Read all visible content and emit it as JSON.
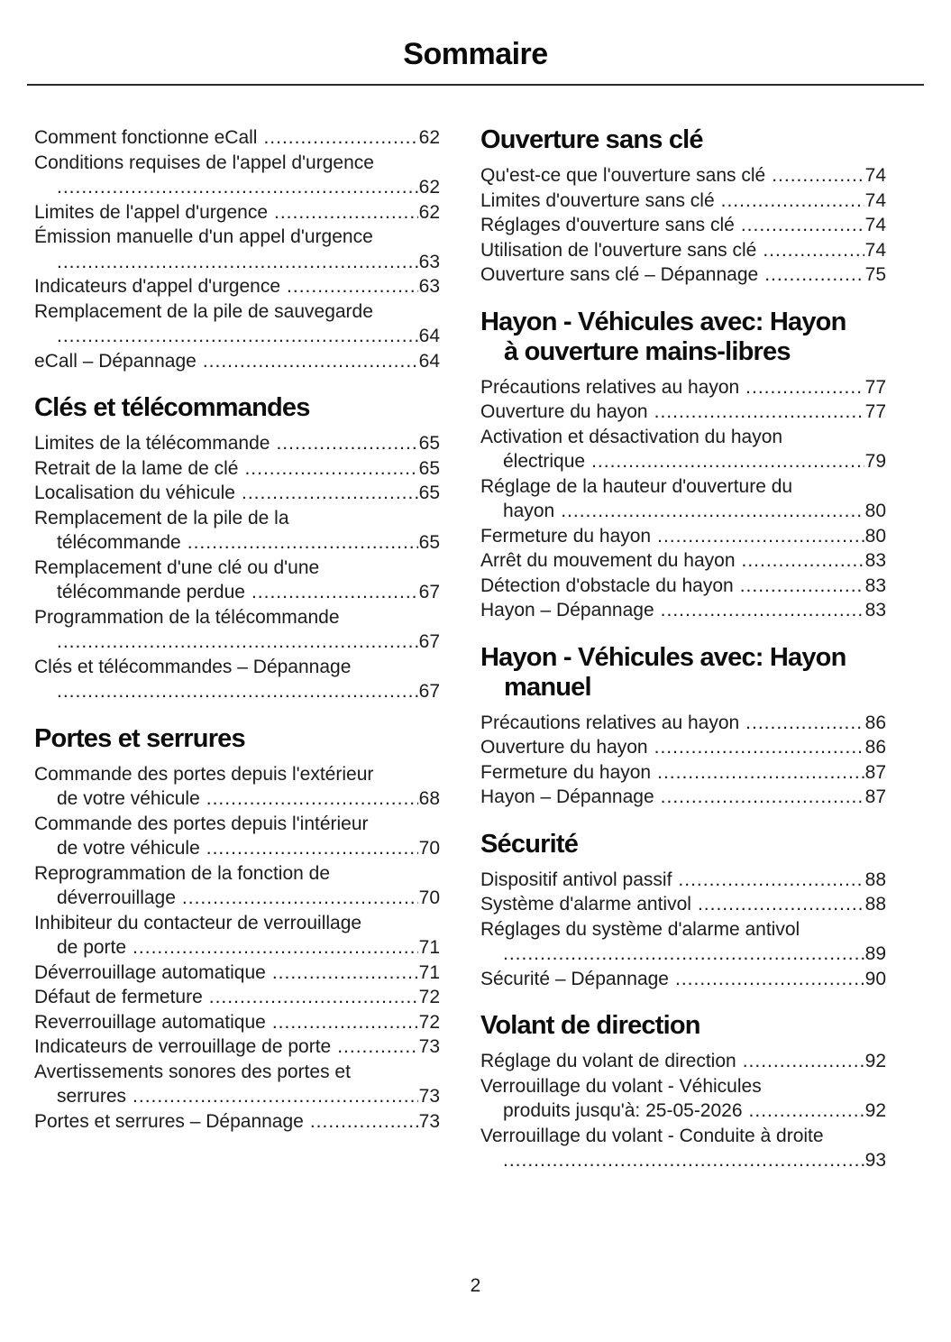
{
  "page": {
    "title": "Sommaire",
    "footer_page_number": "2"
  },
  "toc": {
    "columns": [
      {
        "side": "left",
        "sections": [
          {
            "heading_lines": [],
            "entries": [
              {
                "lines": [
                  "Comment fonctionne eCall"
                ],
                "page": "62"
              },
              {
                "lines": [
                  "Conditions requises de l'appel d'urgence",
                  ""
                ],
                "page": "62"
              },
              {
                "lines": [
                  "Limites de l'appel d'urgence"
                ],
                "page": "62"
              },
              {
                "lines": [
                  "Émission manuelle d'un appel d'urgence",
                  ""
                ],
                "page": "63"
              },
              {
                "lines": [
                  "Indicateurs d'appel d'urgence"
                ],
                "page": "63"
              },
              {
                "lines": [
                  "Remplacement de la pile de sauvegarde",
                  ""
                ],
                "page": "64"
              },
              {
                "lines": [
                  "eCall – Dépannage"
                ],
                "page": "64"
              }
            ]
          },
          {
            "heading_lines": [
              "Clés et télécommandes"
            ],
            "entries": [
              {
                "lines": [
                  "Limites de la télécommande"
                ],
                "page": "65"
              },
              {
                "lines": [
                  "Retrait de la lame de clé"
                ],
                "page": "65"
              },
              {
                "lines": [
                  "Localisation du véhicule"
                ],
                "page": "65"
              },
              {
                "lines": [
                  "Remplacement de la pile de la",
                  "télécommande"
                ],
                "page": "65"
              },
              {
                "lines": [
                  "Remplacement d'une clé ou d'une",
                  "télécommande perdue"
                ],
                "page": "67"
              },
              {
                "lines": [
                  "Programmation de la télécommande",
                  ""
                ],
                "page": "67"
              },
              {
                "lines": [
                  "Clés et télécommandes – Dépannage",
                  ""
                ],
                "page": "67"
              }
            ]
          },
          {
            "heading_lines": [
              "Portes et serrures"
            ],
            "entries": [
              {
                "lines": [
                  "Commande des portes depuis l'extérieur",
                  "de votre véhicule"
                ],
                "page": "68"
              },
              {
                "lines": [
                  "Commande des portes depuis l'intérieur",
                  "de votre véhicule"
                ],
                "page": "70"
              },
              {
                "lines": [
                  "Reprogrammation de la fonction de",
                  "déverrouillage"
                ],
                "page": "70"
              },
              {
                "lines": [
                  "Inhibiteur du contacteur de verrouillage",
                  "de porte"
                ],
                "page": "71"
              },
              {
                "lines": [
                  "Déverrouillage automatique"
                ],
                "page": "71"
              },
              {
                "lines": [
                  "Défaut de fermeture"
                ],
                "page": "72"
              },
              {
                "lines": [
                  "Reverrouillage automatique"
                ],
                "page": "72"
              },
              {
                "lines": [
                  "Indicateurs de verrouillage de porte"
                ],
                "page": "73"
              },
              {
                "lines": [
                  "Avertissements sonores des portes et",
                  "serrures"
                ],
                "page": "73"
              },
              {
                "lines": [
                  "Portes et serrures – Dépannage"
                ],
                "page": "73"
              }
            ]
          }
        ]
      },
      {
        "side": "right",
        "sections": [
          {
            "heading_lines": [
              "Ouverture sans clé"
            ],
            "entries": [
              {
                "lines": [
                  "Qu'est-ce que l'ouverture sans clé"
                ],
                "page": "74"
              },
              {
                "lines": [
                  "Limites d'ouverture sans clé"
                ],
                "page": "74"
              },
              {
                "lines": [
                  "Réglages d'ouverture sans clé"
                ],
                "page": "74"
              },
              {
                "lines": [
                  "Utilisation de l'ouverture sans clé"
                ],
                "page": "74"
              },
              {
                "lines": [
                  "Ouverture sans clé – Dépannage"
                ],
                "page": "75"
              }
            ]
          },
          {
            "heading_lines": [
              "Hayon - Véhicules avec: Hayon",
              "à ouverture mains-libres"
            ],
            "entries": [
              {
                "lines": [
                  "Précautions relatives au hayon"
                ],
                "page": "77"
              },
              {
                "lines": [
                  "Ouverture du hayon"
                ],
                "page": "77"
              },
              {
                "lines": [
                  "Activation et désactivation du hayon",
                  "électrique"
                ],
                "page": "79"
              },
              {
                "lines": [
                  "Réglage de la hauteur d'ouverture du",
                  "hayon"
                ],
                "page": "80"
              },
              {
                "lines": [
                  "Fermeture du hayon"
                ],
                "page": "80"
              },
              {
                "lines": [
                  "Arrêt du mouvement du hayon"
                ],
                "page": "83"
              },
              {
                "lines": [
                  "Détection d'obstacle du hayon"
                ],
                "page": "83"
              },
              {
                "lines": [
                  "Hayon – Dépannage"
                ],
                "page": "83"
              }
            ]
          },
          {
            "heading_lines": [
              "Hayon - Véhicules avec: Hayon",
              "manuel"
            ],
            "entries": [
              {
                "lines": [
                  "Précautions relatives au hayon"
                ],
                "page": "86"
              },
              {
                "lines": [
                  "Ouverture du hayon"
                ],
                "page": "86"
              },
              {
                "lines": [
                  "Fermeture du hayon"
                ],
                "page": "87"
              },
              {
                "lines": [
                  "Hayon – Dépannage"
                ],
                "page": "87"
              }
            ]
          },
          {
            "heading_lines": [
              "Sécurité"
            ],
            "entries": [
              {
                "lines": [
                  "Dispositif antivol passif"
                ],
                "page": "88"
              },
              {
                "lines": [
                  "Système d'alarme antivol"
                ],
                "page": "88"
              },
              {
                "lines": [
                  "Réglages du système d'alarme antivol",
                  ""
                ],
                "page": "89"
              },
              {
                "lines": [
                  "Sécurité – Dépannage"
                ],
                "page": "90"
              }
            ]
          },
          {
            "heading_lines": [
              "Volant de direction"
            ],
            "entries": [
              {
                "lines": [
                  "Réglage du volant de direction"
                ],
                "page": "92"
              },
              {
                "lines": [
                  "Verrouillage du volant - Véhicules",
                  "produits jusqu'à: 25-05-2026"
                ],
                "page": "92"
              },
              {
                "lines": [
                  "Verrouillage du volant - Conduite à droite",
                  ""
                ],
                "page": "93"
              }
            ]
          }
        ]
      }
    ]
  }
}
